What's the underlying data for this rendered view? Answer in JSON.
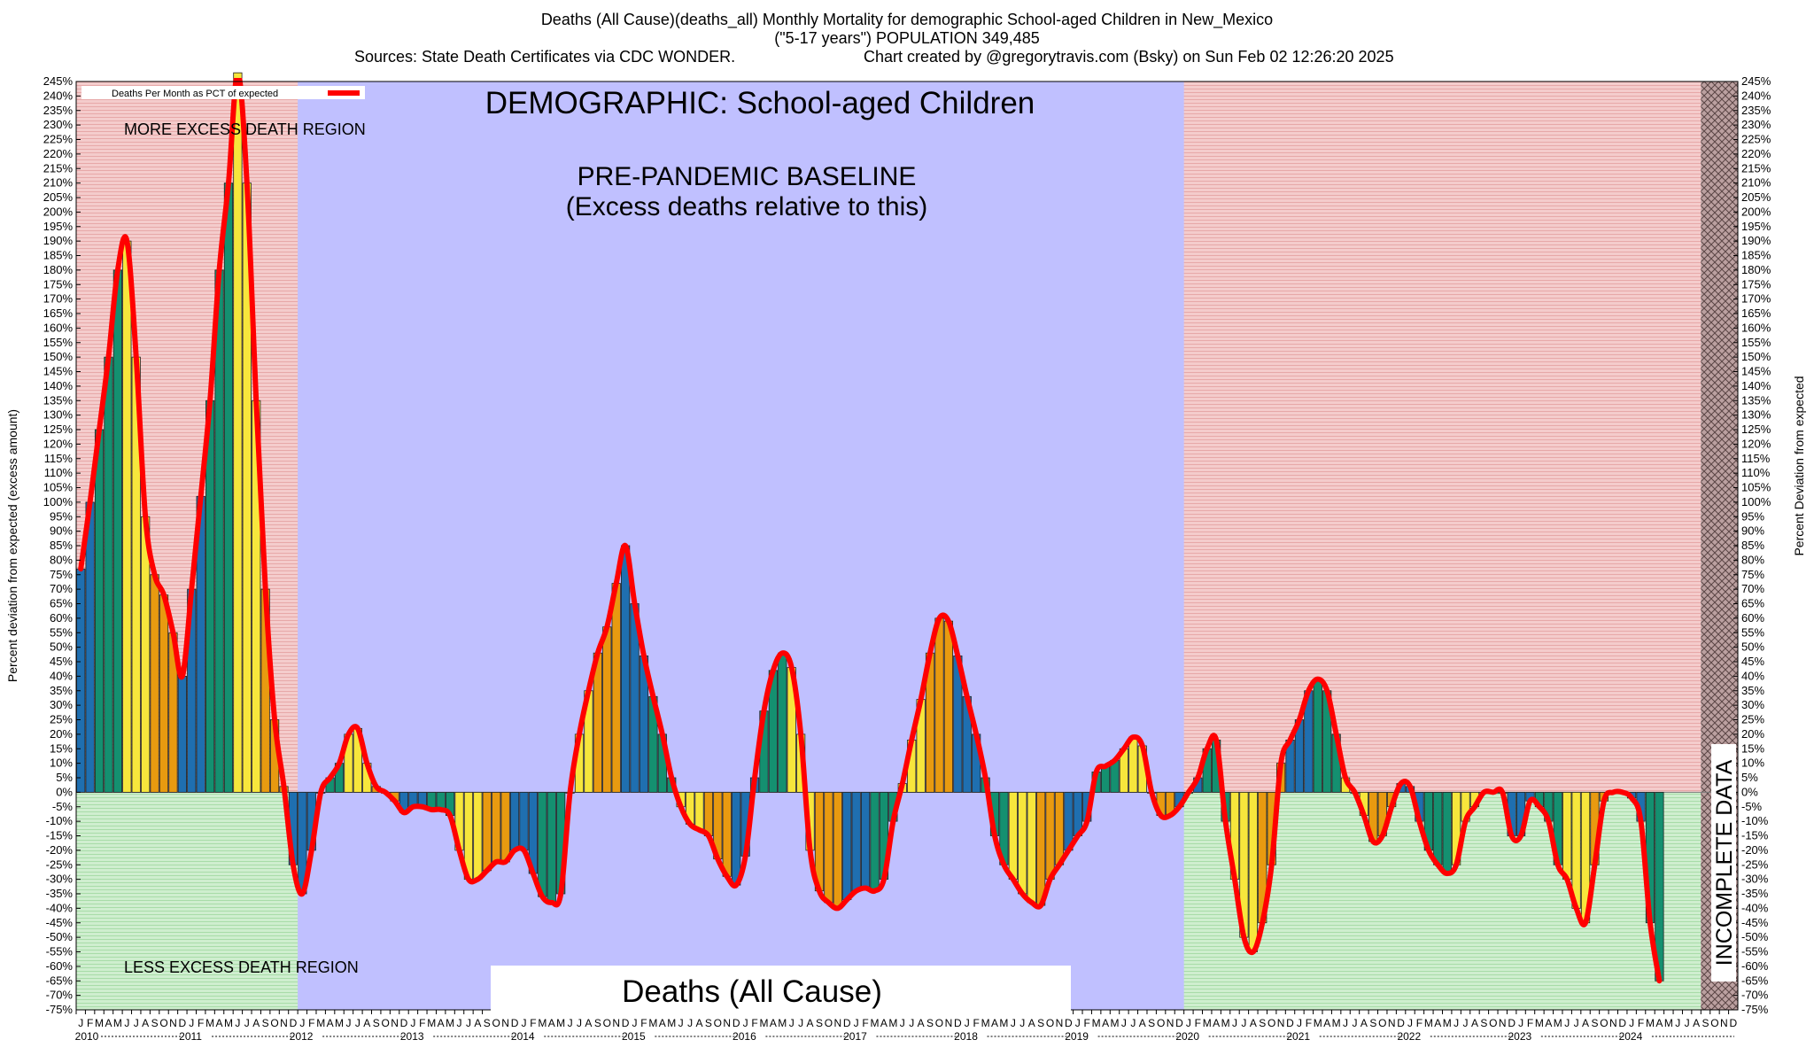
{
  "header": {
    "title_line1": "Deaths (All Cause)(deaths_all) Monthly Mortality for demographic School-aged Children in New_Mexico",
    "title_line2": "(\"5-17 years\") POPULATION 349,485",
    "sources": "Sources: State Death Certificates via CDC WONDER.",
    "credit": "Chart created by @gregorytravis.com (Bsky) on Sun Feb 02 12:26:20 2025"
  },
  "annotations": {
    "demographic": "DEMOGRAPHIC: School-aged Children",
    "baseline_line1": "PRE-PANDEMIC BASELINE",
    "baseline_line2": "(Excess deaths relative to this)",
    "more_excess": "MORE EXCESS DEATH REGION",
    "less_excess": "LESS EXCESS DEATH REGION",
    "measure": "Deaths (All Cause)",
    "incomplete": "INCOMPLETE DATA"
  },
  "colors": {
    "excess_region": "#f2c6c6",
    "less_region": "#c8ecc8",
    "baseline_region": "#c0c0ff",
    "line": "#ff0000",
    "bar_blue": "#1f6fb0",
    "bar_green": "#149070",
    "bar_yellow": "#f7e63c",
    "bar_orange": "#e89a10"
  },
  "chart_data": {
    "type": "bar",
    "ylabel_left": "Percent deviation from expected (excess amount)",
    "ylabel_right": "Percent Deviation from expected",
    "legend": "Deaths Per Month as PCT of expected",
    "legend_position": "top-left",
    "ylim": [
      -75,
      245
    ],
    "ytick_step": 5,
    "years": [
      "2010",
      "2011",
      "2012",
      "2013",
      "2014",
      "2015",
      "2016",
      "2017",
      "2018",
      "2019",
      "2020",
      "2021",
      "2022",
      "2023",
      "2024"
    ],
    "month_letters": [
      "J",
      "F",
      "M",
      "A",
      "M",
      "J",
      "J",
      "A",
      "S",
      "O",
      "N",
      "D"
    ],
    "baseline_years": [
      "2012",
      "2019"
    ],
    "incomplete_months": [
      "2024-09",
      "2024-10",
      "2024-11",
      "2024-12"
    ],
    "values": [
      77,
      100,
      125,
      150,
      180,
      190,
      150,
      95,
      75,
      68,
      55,
      40,
      70,
      102,
      135,
      180,
      210,
      248,
      210,
      135,
      70,
      25,
      2,
      -25,
      -35,
      -20,
      0,
      5,
      10,
      20,
      22,
      10,
      2,
      0,
      -3,
      -7,
      -5,
      -5,
      -6,
      -6,
      -8,
      -20,
      -30,
      -30,
      -27,
      -24,
      -24,
      -20,
      -20,
      -28,
      -36,
      -38,
      -35,
      0,
      20,
      35,
      48,
      57,
      72,
      85,
      65,
      47,
      33,
      20,
      5,
      -5,
      -11,
      -13,
      -15,
      -23,
      -29,
      -32,
      -22,
      5,
      28,
      42,
      48,
      43,
      20,
      -20,
      -34,
      -38,
      -40,
      -37,
      -34,
      -33,
      -34,
      -30,
      -10,
      3,
      18,
      32,
      48,
      60,
      59,
      47,
      33,
      20,
      5,
      -15,
      -25,
      -30,
      -35,
      -38,
      -39,
      -30,
      -25,
      -20,
      -15,
      -10,
      7,
      9,
      11,
      15,
      19,
      16,
      0,
      -8,
      -8,
      -5,
      0,
      5,
      15,
      18,
      -10,
      -30,
      -50,
      -55,
      -45,
      -25,
      10,
      18,
      25,
      35,
      39,
      35,
      20,
      5,
      0,
      -8,
      -17,
      -15,
      -5,
      3,
      2,
      -10,
      -20,
      -25,
      -28,
      -25,
      -10,
      -5,
      0,
      0,
      0,
      -15,
      -15,
      -3,
      -5,
      -10,
      -25,
      -30,
      -40,
      -45,
      -25,
      -3,
      0,
      0,
      -2,
      -10,
      -45,
      -65
    ]
  }
}
